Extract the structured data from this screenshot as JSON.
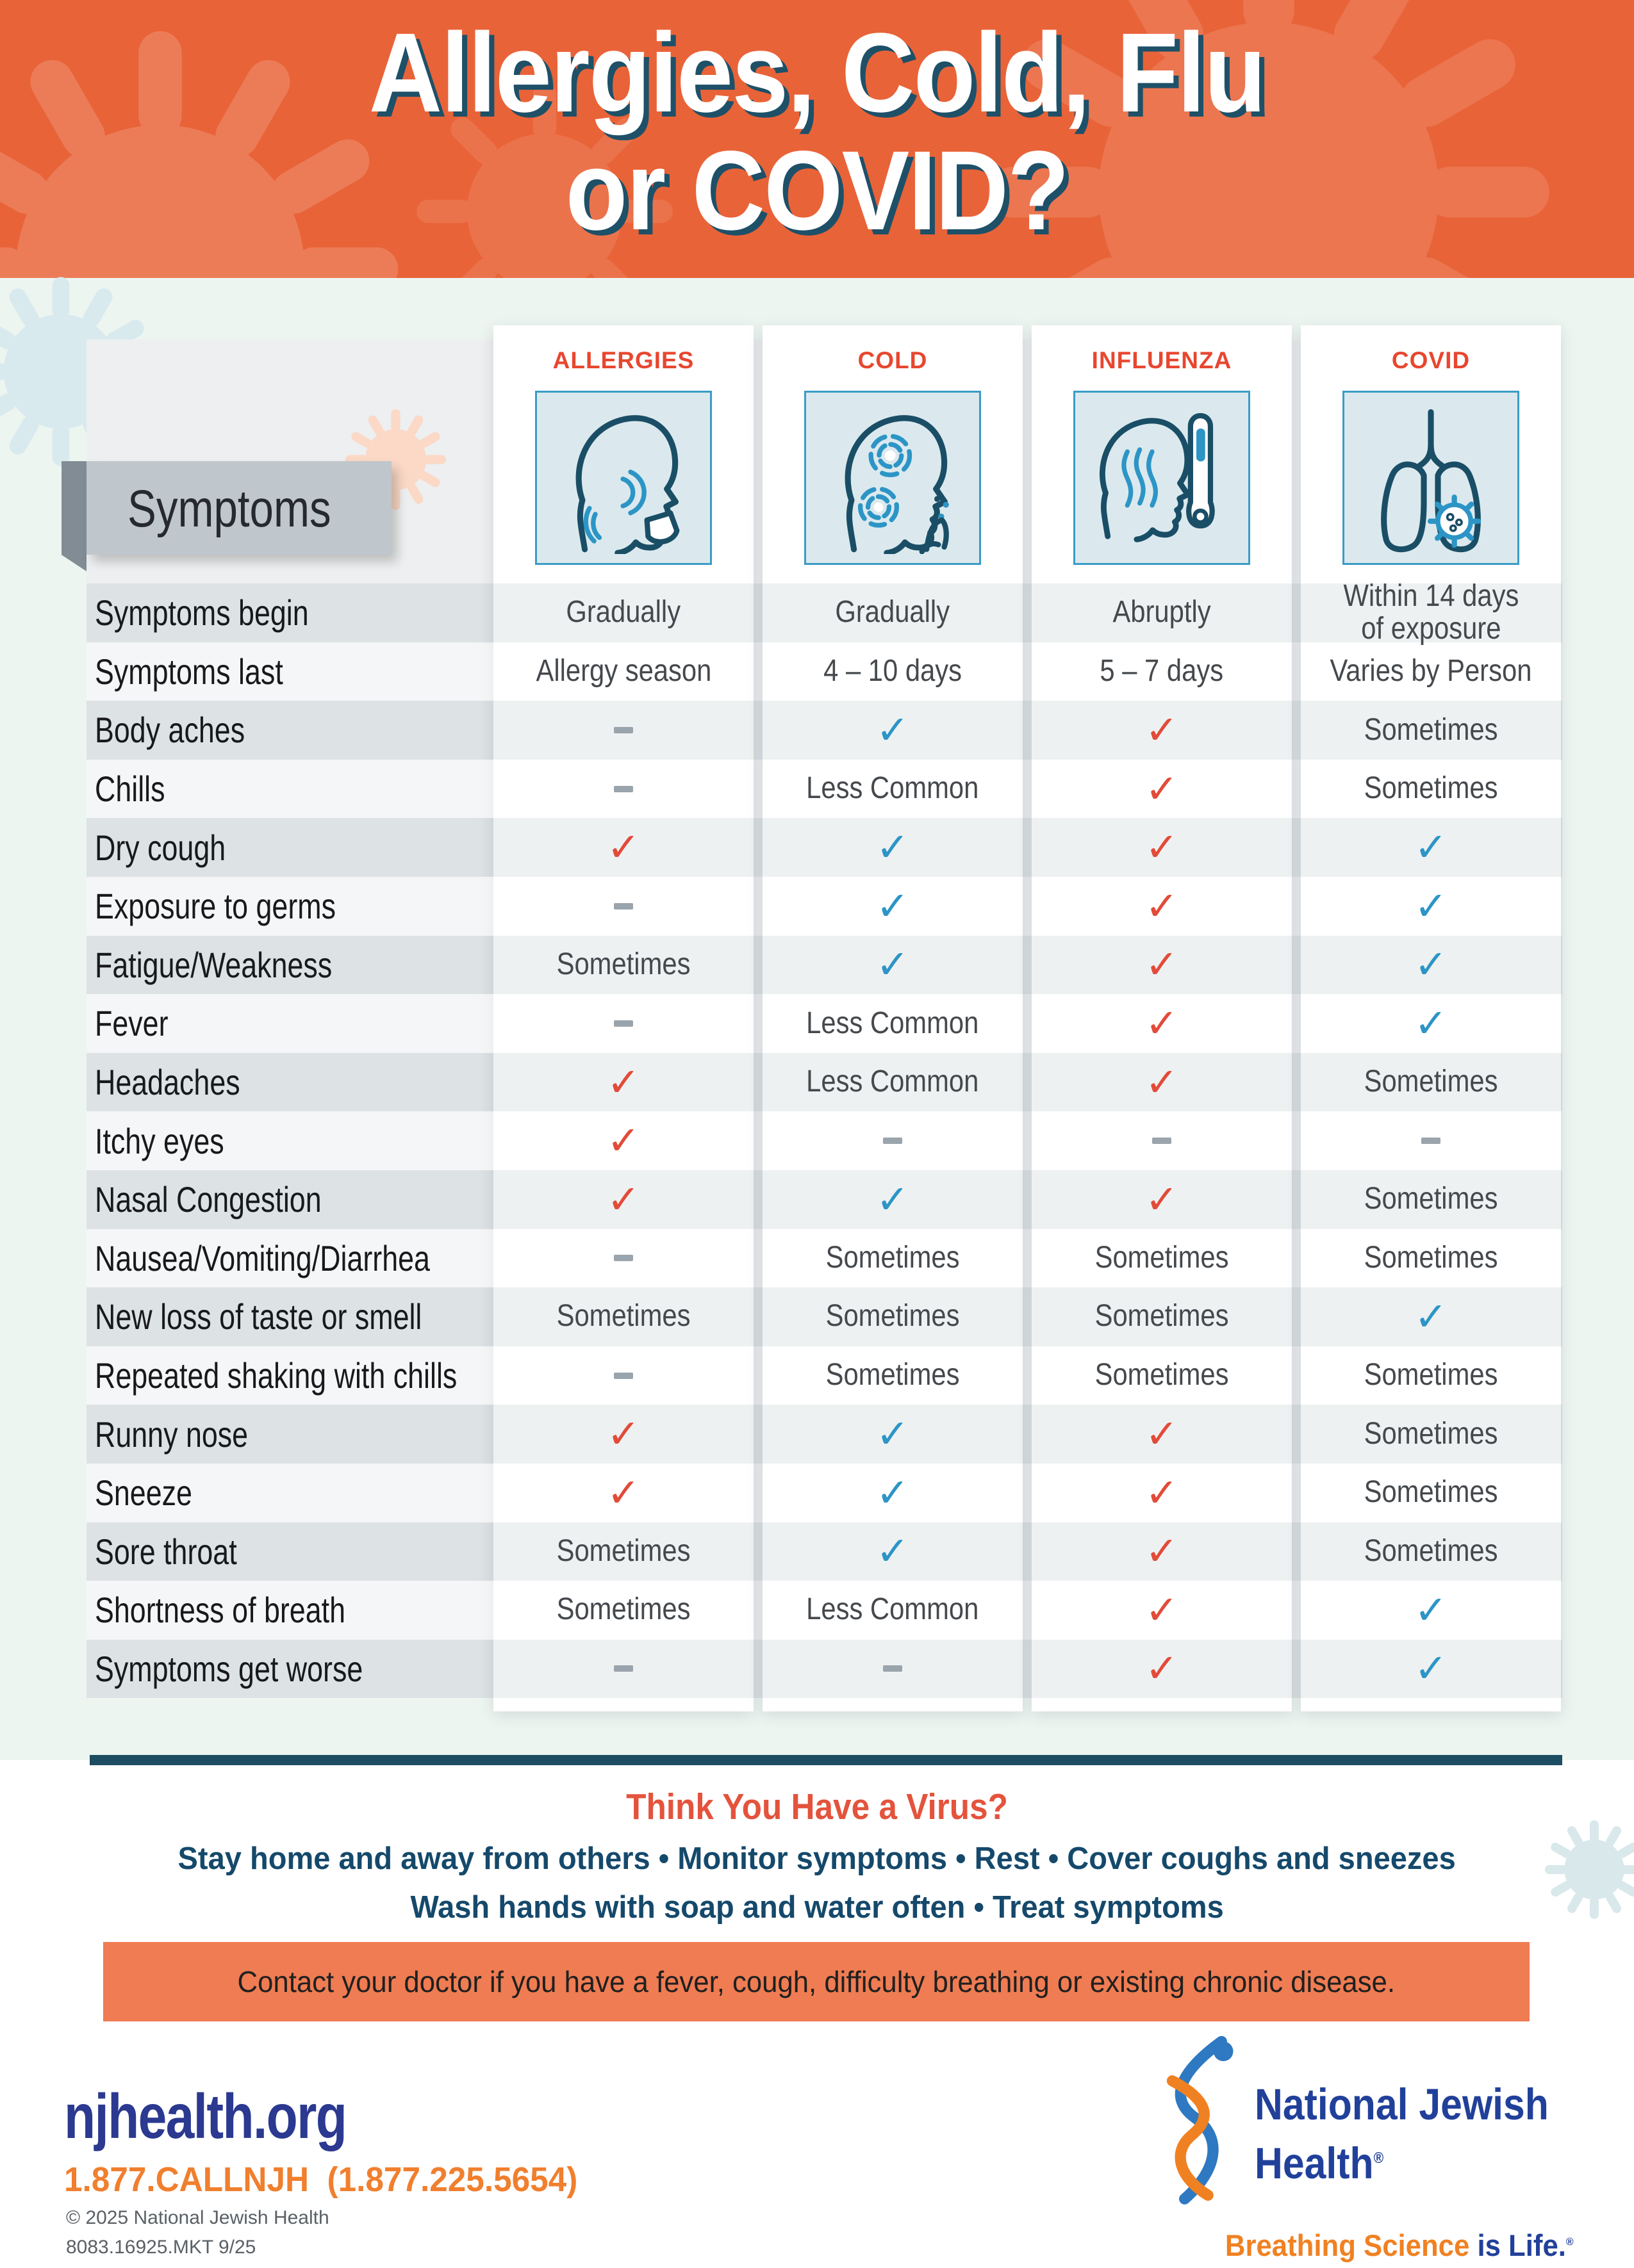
{
  "header": {
    "title_line1": "Allergies, Cold, Flu",
    "title_line2": "or COVID?"
  },
  "table": {
    "symptoms_tab": "Symptoms",
    "columns": [
      {
        "id": "allergies",
        "label": "ALLERGIES",
        "icon": "allergies-sneezing-head-icon"
      },
      {
        "id": "cold",
        "label": "COLD",
        "icon": "cold-coughing-head-icon"
      },
      {
        "id": "influenza",
        "label": "INFLUENZA",
        "icon": "influenza-fever-thermometer-icon"
      },
      {
        "id": "covid",
        "label": "COVID",
        "icon": "covid-lungs-virus-icon"
      }
    ],
    "rows": [
      {
        "label": "Symptoms begin",
        "cells": [
          {
            "type": "text",
            "value": "Gradually"
          },
          {
            "type": "text",
            "value": "Gradually"
          },
          {
            "type": "text",
            "value": "Abruptly"
          },
          {
            "type": "text",
            "value": "Within 14 days\nof exposure"
          }
        ]
      },
      {
        "label": "Symptoms last",
        "cells": [
          {
            "type": "text",
            "value": "Allergy season"
          },
          {
            "type": "text",
            "value": "4 – 10 days"
          },
          {
            "type": "text",
            "value": "5 – 7 days"
          },
          {
            "type": "text",
            "value": "Varies by Person"
          }
        ]
      },
      {
        "label": "Body aches",
        "cells": [
          {
            "type": "dash"
          },
          {
            "type": "check",
            "color": "blue"
          },
          {
            "type": "check",
            "color": "red"
          },
          {
            "type": "text",
            "value": "Sometimes"
          }
        ]
      },
      {
        "label": "Chills",
        "cells": [
          {
            "type": "dash"
          },
          {
            "type": "text",
            "value": "Less Common"
          },
          {
            "type": "check",
            "color": "red"
          },
          {
            "type": "text",
            "value": "Sometimes"
          }
        ]
      },
      {
        "label": "Dry cough",
        "cells": [
          {
            "type": "check",
            "color": "red"
          },
          {
            "type": "check",
            "color": "blue"
          },
          {
            "type": "check",
            "color": "red"
          },
          {
            "type": "check",
            "color": "blue"
          }
        ]
      },
      {
        "label": "Exposure to germs",
        "cells": [
          {
            "type": "dash"
          },
          {
            "type": "check",
            "color": "blue"
          },
          {
            "type": "check",
            "color": "red"
          },
          {
            "type": "check",
            "color": "blue"
          }
        ]
      },
      {
        "label": "Fatigue/Weakness",
        "cells": [
          {
            "type": "text",
            "value": "Sometimes"
          },
          {
            "type": "check",
            "color": "blue"
          },
          {
            "type": "check",
            "color": "red"
          },
          {
            "type": "check",
            "color": "blue"
          }
        ]
      },
      {
        "label": "Fever",
        "cells": [
          {
            "type": "dash"
          },
          {
            "type": "text",
            "value": "Less Common"
          },
          {
            "type": "check",
            "color": "red"
          },
          {
            "type": "check",
            "color": "blue"
          }
        ]
      },
      {
        "label": "Headaches",
        "cells": [
          {
            "type": "check",
            "color": "red"
          },
          {
            "type": "text",
            "value": "Less Common"
          },
          {
            "type": "check",
            "color": "red"
          },
          {
            "type": "text",
            "value": "Sometimes"
          }
        ]
      },
      {
        "label": "Itchy eyes",
        "cells": [
          {
            "type": "check",
            "color": "red"
          },
          {
            "type": "dash"
          },
          {
            "type": "dash"
          },
          {
            "type": "dash"
          }
        ]
      },
      {
        "label": "Nasal Congestion",
        "cells": [
          {
            "type": "check",
            "color": "red"
          },
          {
            "type": "check",
            "color": "blue"
          },
          {
            "type": "check",
            "color": "red"
          },
          {
            "type": "text",
            "value": "Sometimes"
          }
        ]
      },
      {
        "label": "Nausea/Vomiting/Diarrhea",
        "cells": [
          {
            "type": "dash"
          },
          {
            "type": "text",
            "value": "Sometimes"
          },
          {
            "type": "text",
            "value": "Sometimes"
          },
          {
            "type": "text",
            "value": "Sometimes"
          }
        ]
      },
      {
        "label": "New loss of taste or smell",
        "cells": [
          {
            "type": "text",
            "value": "Sometimes"
          },
          {
            "type": "text",
            "value": "Sometimes"
          },
          {
            "type": "text",
            "value": "Sometimes"
          },
          {
            "type": "check",
            "color": "blue"
          }
        ]
      },
      {
        "label": "Repeated shaking with chills",
        "cells": [
          {
            "type": "dash"
          },
          {
            "type": "text",
            "value": "Sometimes"
          },
          {
            "type": "text",
            "value": "Sometimes"
          },
          {
            "type": "text",
            "value": "Sometimes"
          }
        ]
      },
      {
        "label": "Runny nose",
        "cells": [
          {
            "type": "check",
            "color": "red"
          },
          {
            "type": "check",
            "color": "blue"
          },
          {
            "type": "check",
            "color": "red"
          },
          {
            "type": "text",
            "value": "Sometimes"
          }
        ]
      },
      {
        "label": "Sneeze",
        "cells": [
          {
            "type": "check",
            "color": "red"
          },
          {
            "type": "check",
            "color": "blue"
          },
          {
            "type": "check",
            "color": "red"
          },
          {
            "type": "text",
            "value": "Sometimes"
          }
        ]
      },
      {
        "label": "Sore throat",
        "cells": [
          {
            "type": "text",
            "value": "Sometimes"
          },
          {
            "type": "check",
            "color": "blue"
          },
          {
            "type": "check",
            "color": "red"
          },
          {
            "type": "text",
            "value": "Sometimes"
          }
        ]
      },
      {
        "label": "Shortness of breath",
        "cells": [
          {
            "type": "text",
            "value": "Sometimes"
          },
          {
            "type": "text",
            "value": "Less Common"
          },
          {
            "type": "check",
            "color": "red"
          },
          {
            "type": "check",
            "color": "blue"
          }
        ]
      },
      {
        "label": "Symptoms get worse",
        "cells": [
          {
            "type": "dash"
          },
          {
            "type": "dash"
          },
          {
            "type": "check",
            "color": "red"
          },
          {
            "type": "check",
            "color": "blue"
          }
        ]
      }
    ]
  },
  "advice": {
    "heading": "Think You Have a Virus?",
    "line1": "Stay home and away from others • Monitor symptoms • Rest • Cover coughs and sneezes",
    "line2": "Wash hands with soap and water often • Treat symptoms",
    "contact_banner": "Contact your doctor if you have a fever, cough, difficulty breathing or existing chronic disease."
  },
  "footer": {
    "website": "njhealth.org",
    "phone": "1.877.CALLNJH  (1.877.225.5654)",
    "copyright": "© 2025 National Jewish Health",
    "code": "8083.16925.MKT 9/25",
    "brand_line1": "National Jewish",
    "brand_line2": "Health",
    "brand_reg": "®",
    "tagline_part1": "Breathing Science",
    "tagline_part2": " is Life.",
    "tagline_reg": "®"
  },
  "glyphs": {
    "check": "✓"
  },
  "colors": {
    "hero_orange": "#E96338",
    "banner_orange": "#EF7C52",
    "column_header_red": "#E8462F",
    "check_red": "#E24B38",
    "check_blue": "#2C95C6",
    "teal_dark": "#1C4D63",
    "brand_navy": "#21409A",
    "brand_orange": "#F08122",
    "site_blue": "#2B3990"
  }
}
